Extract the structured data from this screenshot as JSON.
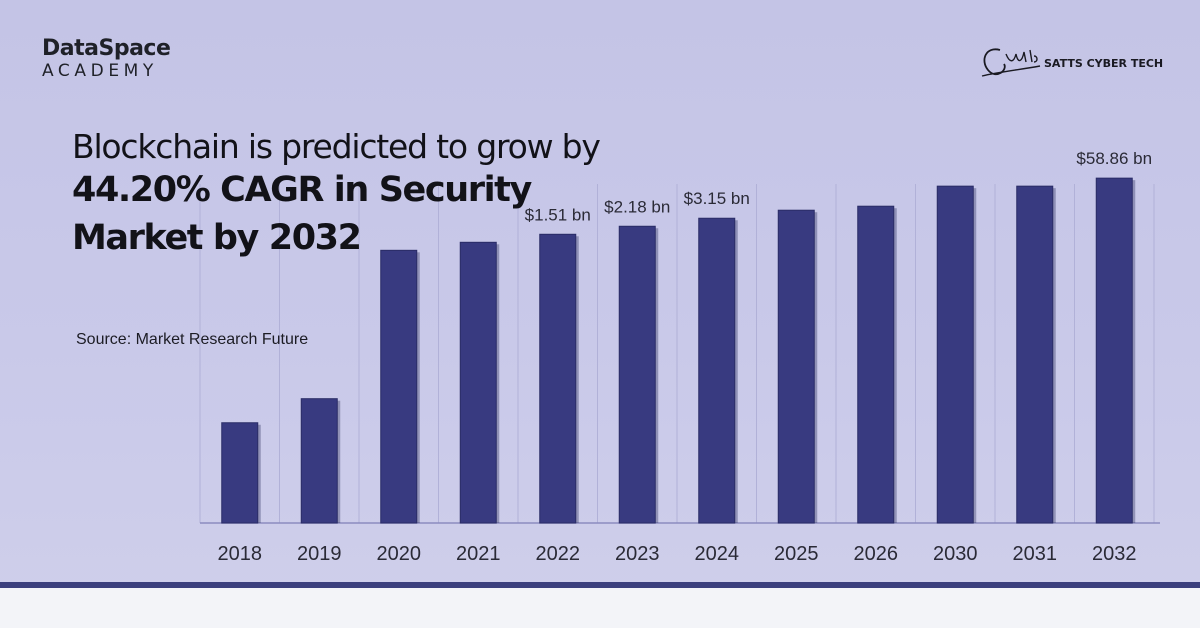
{
  "brand": {
    "top": "DataSpace",
    "bottom": "ACADEMY"
  },
  "partner": {
    "name": "SATTS CYBER TECH",
    "signature": "Satts",
    "signature_sub": "SattsCyberTech"
  },
  "headline": {
    "line1": "Blockchain is predicted to grow by",
    "line2": "44.20% CAGR in Security",
    "line3": "Market by 2032"
  },
  "source": "Source: Market Research Future",
  "colors": {
    "bar": "#383a80",
    "bar_shadow": "#25275a",
    "background": "#c6c6e7",
    "footer_line": "#3b3f7d"
  },
  "chart_data": {
    "type": "bar",
    "categories": [
      "2018",
      "2019",
      "2020",
      "2021",
      "2022",
      "2023",
      "2024",
      "2025",
      "2026",
      "2030",
      "2031",
      "2032"
    ],
    "values": [
      0.25,
      0.31,
      0.68,
      0.7,
      0.72,
      0.74,
      0.76,
      0.78,
      0.79,
      0.84,
      0.84,
      0.86
    ],
    "value_labels": [
      "",
      "",
      "",
      "",
      "$1.51 bn",
      "$2.18 bn",
      "$3.15 bn",
      "",
      "",
      "",
      "",
      "$58.86 bn"
    ],
    "ylim": [
      0,
      1
    ],
    "y_unit": "relative bar height (not to scale)",
    "grid": true
  }
}
